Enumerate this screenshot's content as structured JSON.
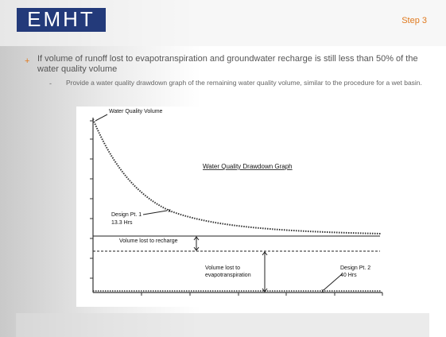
{
  "header": {
    "logo": "EMHT",
    "step": "Step 3"
  },
  "bullet": {
    "text": "If volume of runoff lost to evapotranspiration and groundwater recharge is still less than 50% of the water quality volume",
    "sub": "Provide a water quality drawdown graph of the remaining water quality volume, similar to the procedure for a wet basin."
  },
  "graph": {
    "title": "Water Quality Drawdown Graph",
    "curve_label": "Water Quality Volume",
    "point1": {
      "name": "Design Pt. 1",
      "time": "13.3 Hrs"
    },
    "point2": {
      "name": "Design Pt. 2",
      "time": "40 Hrs"
    },
    "recharge": "Volume lost to recharge",
    "evap_line1": "Volume lost to",
    "evap_line2": "evapotranspiration"
  }
}
